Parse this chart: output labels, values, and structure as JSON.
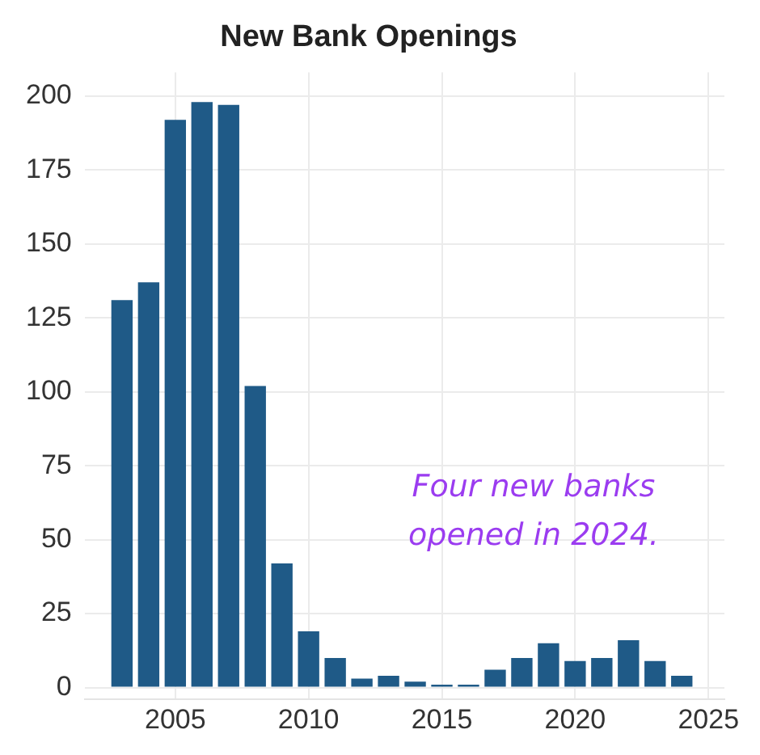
{
  "chart_data": {
    "type": "bar",
    "title": "New Bank Openings",
    "x": [
      2003,
      2004,
      2005,
      2006,
      2007,
      2008,
      2009,
      2010,
      2011,
      2012,
      2013,
      2014,
      2015,
      2016,
      2017,
      2018,
      2019,
      2020,
      2021,
      2022,
      2023,
      2024
    ],
    "values": [
      131,
      137,
      192,
      198,
      197,
      102,
      42,
      19,
      10,
      3,
      4,
      2,
      1,
      1,
      6,
      10,
      15,
      9,
      10,
      16,
      9,
      4
    ],
    "color": "#1f5a87",
    "xlim": [
      2001.6,
      2025.6
    ],
    "xticks": [
      2005,
      2010,
      2015,
      2020,
      2025
    ],
    "ylim": [
      -4,
      208
    ],
    "yticks": [
      0,
      25,
      50,
      75,
      100,
      125,
      150,
      175,
      200
    ],
    "grid": true,
    "annotations": [
      "Four new banks opened in 2024."
    ]
  }
}
